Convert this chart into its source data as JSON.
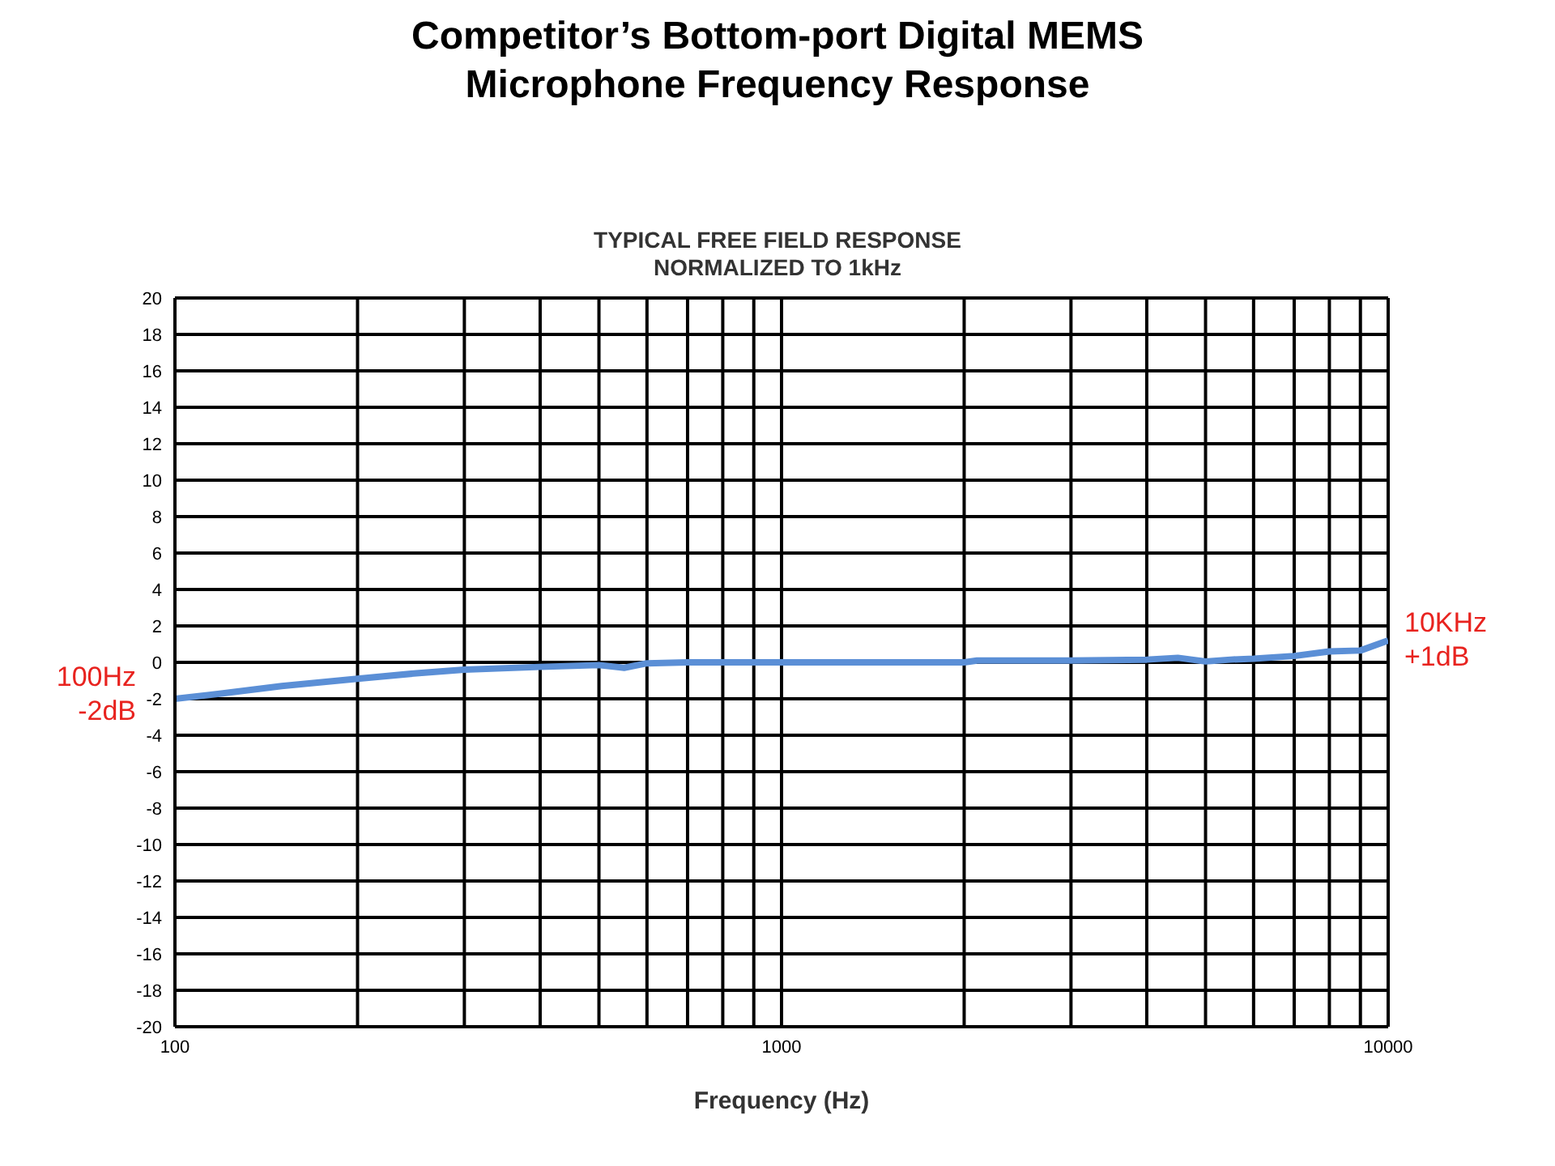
{
  "chart_data": {
    "type": "line",
    "title": "Competitor’s Bottom-port Digital MEMS\nMicrophone Frequency Response",
    "subtitle": "TYPICAL FREE FIELD RESPONSE\nNORMALIZED TO 1kHz",
    "xlabel": "Frequency (Hz)",
    "x": [
      100,
      120,
      150,
      200,
      250,
      300,
      400,
      500,
      550,
      600,
      700,
      1000,
      2000,
      2100,
      3000,
      4000,
      4500,
      5000,
      5500,
      6000,
      7000,
      8000,
      9000,
      10000
    ],
    "series": [
      {
        "color": "#5b8fd6",
        "values": [
          -2,
          -1.7,
          -1.3,
          -0.9,
          -0.6,
          -0.4,
          -0.25,
          -0.15,
          -0.3,
          -0.05,
          0,
          0,
          0,
          0.1,
          0.1,
          0.15,
          0.25,
          0.05,
          0.15,
          0.2,
          0.35,
          0.6,
          0.65,
          1.2
        ]
      }
    ],
    "log": "x",
    "xlim": [
      100,
      10000
    ],
    "xticks": [
      100,
      {
        "value": 200,
        "label": null
      },
      {
        "value": 300,
        "label": null
      },
      {
        "value": 400,
        "label": null
      },
      {
        "value": 500,
        "label": null
      },
      {
        "value": 600,
        "label": null
      },
      {
        "value": 700,
        "label": null
      },
      {
        "value": 800,
        "label": null
      },
      {
        "value": 900,
        "label": null
      },
      1000,
      {
        "value": 2000,
        "label": null
      },
      {
        "value": 3000,
        "label": null
      },
      {
        "value": 4000,
        "label": null
      },
      {
        "value": 5000,
        "label": null
      },
      {
        "value": 6000,
        "label": null
      },
      {
        "value": 7000,
        "label": null
      },
      {
        "value": 8000,
        "label": null
      },
      {
        "value": 9000,
        "label": null
      },
      10000
    ],
    "ylim": [
      -20,
      20
    ],
    "yticks": [
      -20,
      -18,
      -16,
      -14,
      -12,
      -10,
      -8,
      -6,
      -4,
      -2,
      0,
      2,
      4,
      6,
      8,
      10,
      12,
      14,
      16,
      18,
      20
    ],
    "grid": true,
    "marker": "none",
    "line_style": "solid",
    "annotations": [
      {
        "text": "100Hz\n-2dB",
        "x": 100,
        "y": -2
      },
      {
        "text": "10KHz\n+1dB",
        "x": 10000,
        "y": 1
      }
    ]
  }
}
